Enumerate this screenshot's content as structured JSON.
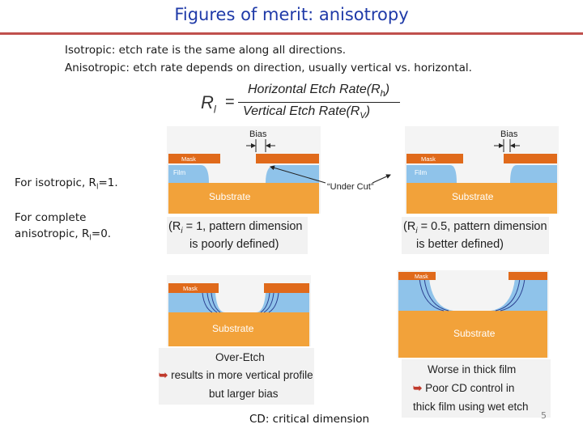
{
  "title": "Figures of merit: anisotropy",
  "lines": {
    "isotropic": "Isotropic: etch rate is the same along all directions.",
    "anisotropic": "Anisotropic: etch rate depends on direction, usually vertical vs. horizontal."
  },
  "formula": {
    "lhs": "R",
    "lhs_sub": "l",
    "eq": "=",
    "numerator": "Horizontal Etch Rate(R",
    "numerator_sub": "h",
    "denominator": "Vertical Etch Rate(R",
    "denominator_sub": "V",
    "close": ")"
  },
  "side": {
    "iso_prefix": "For isotropic, R",
    "iso_sub": "l",
    "iso_suffix": "=1.",
    "aniso_line1": "For complete",
    "aniso_prefix": "anisotropic, R",
    "aniso_sub": "l",
    "aniso_suffix": "=0."
  },
  "diagram_labels": {
    "bias": "Bias",
    "mask": "Mask",
    "film": "Film",
    "substrate": "Substrate",
    "undercut": "“Under Cut”",
    "left_note_1": "(R",
    "left_note_1b": " = 1, pattern dimension",
    "left_note_2": "is poorly defined)",
    "right_note_1": "(R",
    "right_note_1b": " = 0.5, pattern dimension",
    "right_note_2": "is better defined)",
    "note_sub": "i",
    "overetch": "Over-Etch",
    "overetch_1": "results in more vertical profile",
    "overetch_2": "but larger bias",
    "thick_1": "Worse in thick film",
    "thick_2": "Poor CD control in",
    "thick_3": "thick film using wet etch"
  },
  "footnote": "CD: critical dimension",
  "page_number": "5",
  "colors": {
    "title": "#1f3aa8",
    "rule": "#c0504d",
    "substrate": "#f2a23a",
    "film": "#8fc3ea",
    "mask": "#e06a1b",
    "bullet_arrow": "#c0392b"
  }
}
